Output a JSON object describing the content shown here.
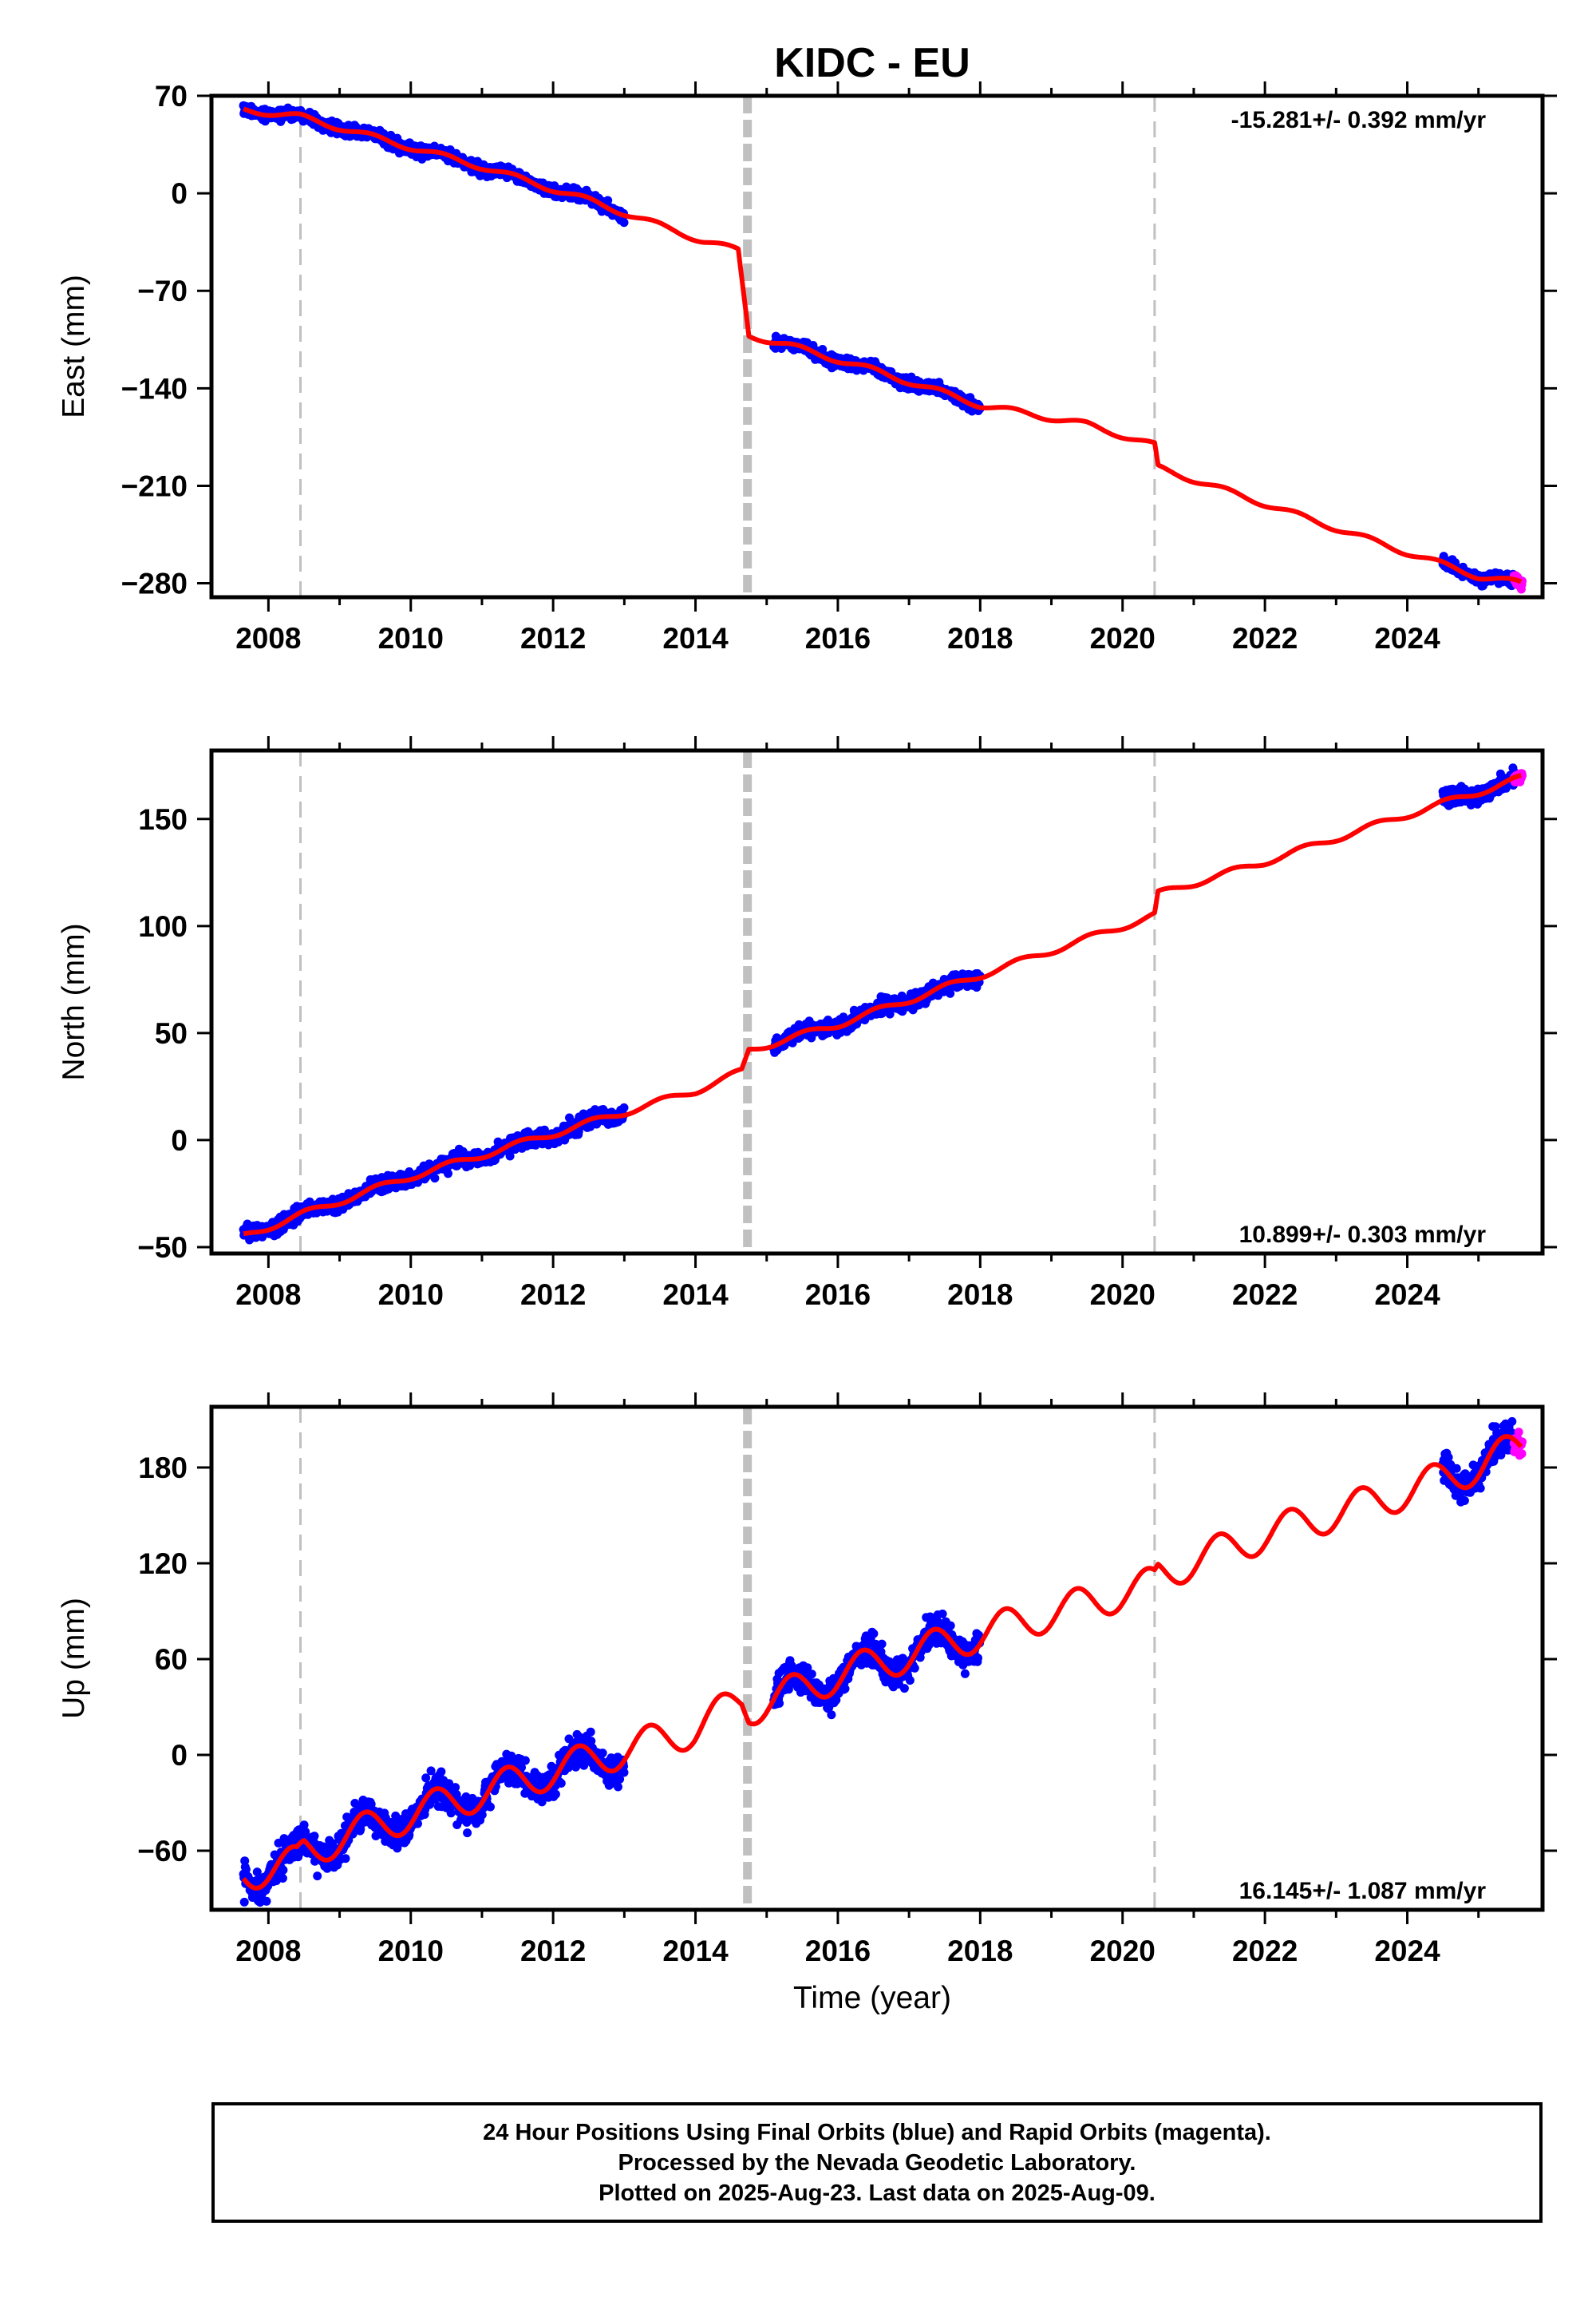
{
  "title": "KIDC - EU",
  "x_axis": {
    "label": "Time (year)",
    "min": 2007.2,
    "max": 2025.9,
    "ticks": [
      2008,
      2010,
      2012,
      2014,
      2016,
      2018,
      2020,
      2022,
      2024
    ],
    "tick_labels": [
      "2008",
      "2010",
      "2012",
      "2014",
      "2016",
      "2018",
      "2020",
      "2022",
      "2024"
    ]
  },
  "equipment_changes": {
    "thin_dashed_gray": [
      2008.45,
      2020.45
    ],
    "thick_dashed_gray": [
      2014.73
    ]
  },
  "legend_colors": {
    "final_orbits": "#0000ff",
    "rapid_orbits": "#ff00ff",
    "model_fit": "#ff0000",
    "breaks": "#c0c0c0"
  },
  "chart_data": [
    {
      "type": "scatter",
      "component": "East",
      "ylabel": "East (mm)",
      "ylim": [
        -290,
        70
      ],
      "yticks": [
        70,
        0,
        -70,
        -140,
        -210,
        -280
      ],
      "ytick_labels": [
        "70",
        "0",
        "−70",
        "−140",
        "−210",
        "−280"
      ],
      "rate_text": "-15.281+/- 0.392 mm/yr",
      "rate_position": "top-right",
      "rate_mm_per_yr": -15.281,
      "seasonal": {
        "amp": 2,
        "phase": 0.2
      },
      "fit_line": {
        "x": [
          2007.65,
          2008.45,
          2009.5,
          2011.0,
          2012.5,
          2014.1,
          2014.6,
          2014.75,
          2015.3,
          2016.5,
          2018.0,
          2019.5,
          2020.45,
          2020.5,
          2022.0,
          2024.0,
          2025.0,
          2025.6
        ],
        "y": [
          60,
          55,
          40,
          19,
          -5,
          -34,
          -41,
          -102,
          -109,
          -127,
          -152,
          -166,
          -181,
          -197,
          -223,
          -258,
          -275,
          -280
        ]
      },
      "final_orbit_segments": [
        [
          2007.65,
          2013.0
        ],
        [
          2015.1,
          2018.0
        ],
        [
          2024.5,
          2025.5
        ]
      ],
      "rapid_orbit_segment": [
        2025.5,
        2025.62
      ],
      "final_noise_mm": 3,
      "rapid_noise_mm": 3
    },
    {
      "type": "scatter",
      "component": "North",
      "ylabel": "North (mm)",
      "ylim": [
        -53,
        182
      ],
      "yticks": [
        150,
        100,
        50,
        0,
        -50
      ],
      "ytick_labels": [
        "150",
        "100",
        "50",
        "0",
        "−50"
      ],
      "rate_text": "10.899+/- 0.303 mm/yr",
      "rate_position": "bottom-right",
      "rate_mm_per_yr": 10.899,
      "seasonal": {
        "amp": 1.5,
        "phase": 0.3
      },
      "fit_line": {
        "x": [
          2007.65,
          2008.45,
          2010.0,
          2012.0,
          2014.0,
          2014.65,
          2014.75,
          2016.0,
          2018.0,
          2020.45,
          2020.5,
          2022.0,
          2024.0,
          2025.6
        ],
        "y": [
          -45,
          -35,
          -17,
          3,
          23,
          32,
          42,
          54,
          77,
          105,
          115,
          130,
          152,
          169
        ]
      },
      "final_orbit_segments": [
        [
          2007.65,
          2013.0
        ],
        [
          2015.1,
          2018.0
        ],
        [
          2024.5,
          2025.5
        ]
      ],
      "rapid_orbit_segment": [
        2025.5,
        2025.62
      ],
      "final_noise_mm": 2.5,
      "rapid_noise_mm": 3
    },
    {
      "type": "scatter",
      "component": "Up",
      "ylabel": "Up (mm)",
      "ylim": [
        -97,
        218
      ],
      "yticks": [
        180,
        120,
        60,
        0,
        -60
      ],
      "ytick_labels": [
        "180",
        "120",
        "60",
        "0",
        "−60"
      ],
      "rate_text": "16.145+/- 1.087 mm/yr",
      "rate_position": "bottom-right",
      "rate_mm_per_yr": 16.145,
      "seasonal": {
        "amp": 11,
        "phase": 0.1
      },
      "fit_line": {
        "x": [
          2007.65,
          2008.4,
          2008.5,
          2010.0,
          2012.0,
          2014.0,
          2014.65,
          2014.75,
          2016.0,
          2018.0,
          2020.45,
          2020.5,
          2022.0,
          2024.0,
          2025.0,
          2025.6
        ],
        "y": [
          -74,
          -68,
          -60,
          -37,
          -10,
          16,
          35,
          29,
          50,
          76,
          107,
          113,
          138,
          165,
          181,
          193
        ]
      },
      "final_orbit_segments": [
        [
          2007.65,
          2013.0
        ],
        [
          2015.1,
          2018.0
        ],
        [
          2024.5,
          2025.5
        ]
      ],
      "rapid_orbit_segment": [
        2025.5,
        2025.62
      ],
      "final_noise_mm": 7,
      "rapid_noise_mm": 6
    }
  ],
  "footer": {
    "line1": "24 Hour Positions Using Final Orbits (blue) and Rapid Orbits (magenta).",
    "line2": "Processed by the Nevada Geodetic Laboratory.",
    "line3": "Plotted on 2025-Aug-23. Last data on 2025-Aug-09."
  }
}
